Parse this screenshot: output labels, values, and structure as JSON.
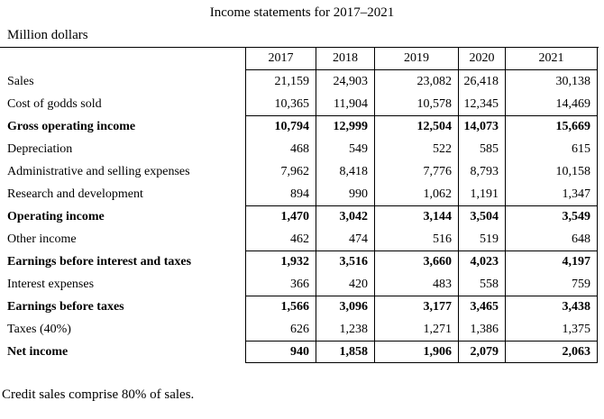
{
  "title": "Income statements for 2017–2021",
  "units_label": "Million dollars",
  "footnote": "Credit sales comprise 80% of sales.",
  "table": {
    "years": [
      "2017",
      "2018",
      "2019",
      "2020",
      "2021"
    ],
    "rows": [
      {
        "label": "Sales",
        "bold": false,
        "values": [
          "21,159",
          "24,903",
          "23,082",
          "26,418",
          "30,138"
        ]
      },
      {
        "label": "Cost of godds sold",
        "bold": false,
        "values": [
          "10,365",
          "11,904",
          "10,578",
          "12,345",
          "14,469"
        ]
      },
      {
        "label": "Gross operating income",
        "bold": true,
        "values": [
          "10,794",
          "12,999",
          "12,504",
          "14,073",
          "15,669"
        ]
      },
      {
        "label": "Depreciation",
        "bold": false,
        "values": [
          "468",
          "549",
          "522",
          "585",
          "615"
        ]
      },
      {
        "label": "Administrative and selling expenses",
        "bold": false,
        "values": [
          "7,962",
          "8,418",
          "7,776",
          "8,793",
          "10,158"
        ]
      },
      {
        "label": "Research and development",
        "bold": false,
        "values": [
          "894",
          "990",
          "1,062",
          "1,191",
          "1,347"
        ]
      },
      {
        "label": "Operating income",
        "bold": true,
        "values": [
          "1,470",
          "3,042",
          "3,144",
          "3,504",
          "3,549"
        ]
      },
      {
        "label": "Other income",
        "bold": false,
        "values": [
          "462",
          "474",
          "516",
          "519",
          "648"
        ]
      },
      {
        "label": "Earnings before interest and taxes",
        "bold": true,
        "values": [
          "1,932",
          "3,516",
          "3,660",
          "4,023",
          "4,197"
        ]
      },
      {
        "label": "Interest expenses",
        "bold": false,
        "values": [
          "366",
          "420",
          "483",
          "558",
          "759"
        ]
      },
      {
        "label": "Earnings before taxes",
        "bold": true,
        "values": [
          "1,566",
          "3,096",
          "3,177",
          "3,465",
          "3,438"
        ]
      },
      {
        "label": "Taxes (40%)",
        "bold": false,
        "values": [
          "626",
          "1,238",
          "1,271",
          "1,386",
          "1,375"
        ]
      },
      {
        "label": "Net income",
        "bold": true,
        "values": [
          "940",
          "1,858",
          "1,906",
          "2,079",
          "2,063"
        ]
      }
    ]
  },
  "chart_data": {
    "type": "table",
    "title": "Income statements for 2017–2021",
    "unit": "Million dollars",
    "categories": [
      "2017",
      "2018",
      "2019",
      "2020",
      "2021"
    ],
    "series": [
      {
        "name": "Sales",
        "values": [
          21159,
          24903,
          23082,
          26418,
          30138
        ]
      },
      {
        "name": "Cost of godds sold",
        "values": [
          10365,
          11904,
          10578,
          12345,
          14469
        ]
      },
      {
        "name": "Gross operating income",
        "values": [
          10794,
          12999,
          12504,
          14073,
          15669
        ]
      },
      {
        "name": "Depreciation",
        "values": [
          468,
          549,
          522,
          585,
          615
        ]
      },
      {
        "name": "Administrative and selling expenses",
        "values": [
          7962,
          8418,
          7776,
          8793,
          10158
        ]
      },
      {
        "name": "Research and development",
        "values": [
          894,
          990,
          1062,
          1191,
          1347
        ]
      },
      {
        "name": "Operating income",
        "values": [
          1470,
          3042,
          3144,
          3504,
          3549
        ]
      },
      {
        "name": "Other income",
        "values": [
          462,
          474,
          516,
          519,
          648
        ]
      },
      {
        "name": "Earnings before interest and taxes",
        "values": [
          1932,
          3516,
          3660,
          4023,
          4197
        ]
      },
      {
        "name": "Interest expenses",
        "values": [
          366,
          420,
          483,
          558,
          759
        ]
      },
      {
        "name": "Earnings before taxes",
        "values": [
          1566,
          3096,
          3177,
          3465,
          3438
        ]
      },
      {
        "name": "Taxes (40%)",
        "values": [
          626,
          1238,
          1271,
          1386,
          1375
        ]
      },
      {
        "name": "Net income",
        "values": [
          940,
          1858,
          1906,
          2079,
          2063
        ]
      }
    ]
  }
}
